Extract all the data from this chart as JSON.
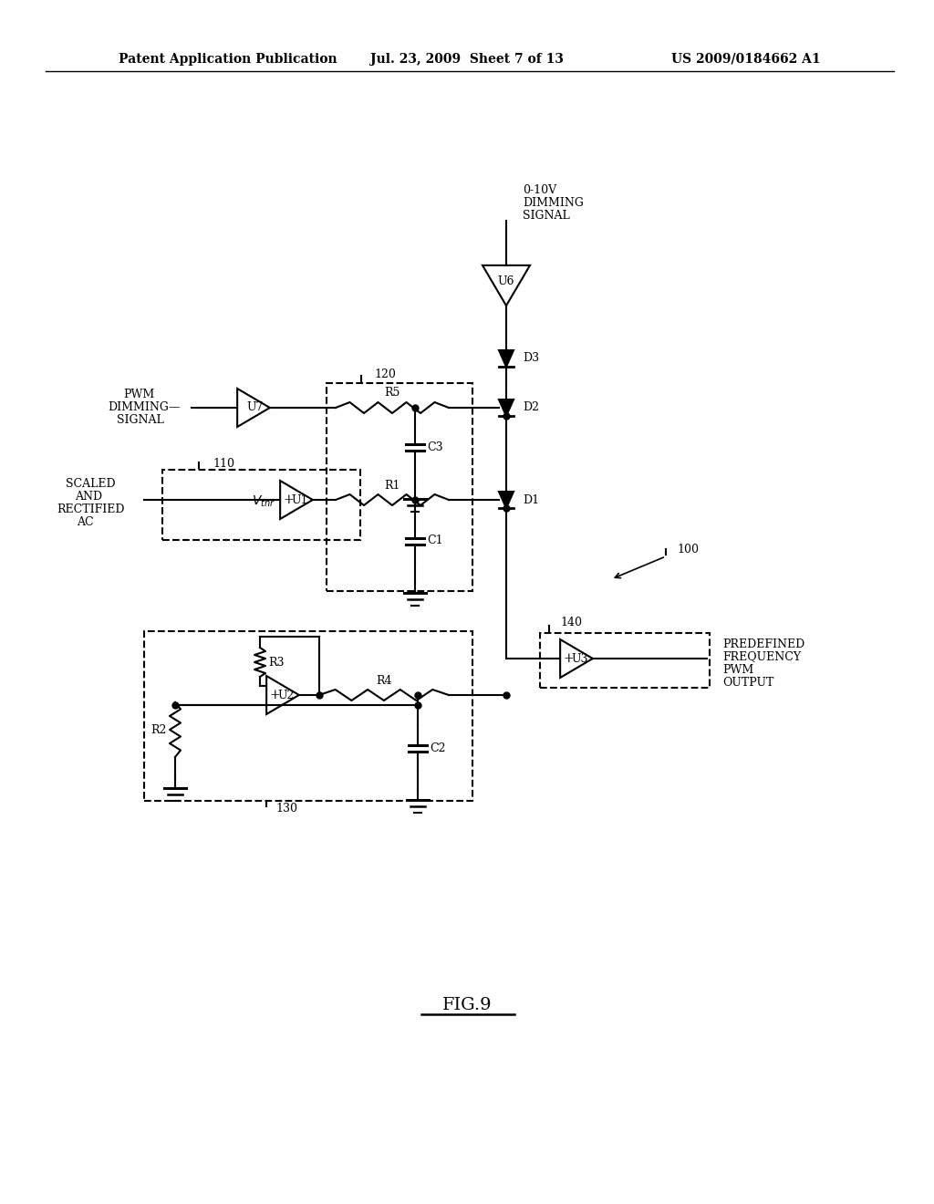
{
  "header_left": "Patent Application Publication",
  "header_mid": "Jul. 23, 2009  Sheet 7 of 13",
  "header_right": "US 2009/0184662 A1",
  "fig_label": "FIG.9",
  "bg_color": "#ffffff",
  "line_color": "#000000",
  "lw": 1.5,
  "fig_w": 10.24,
  "fig_h": 13.2,
  "dpi": 100
}
